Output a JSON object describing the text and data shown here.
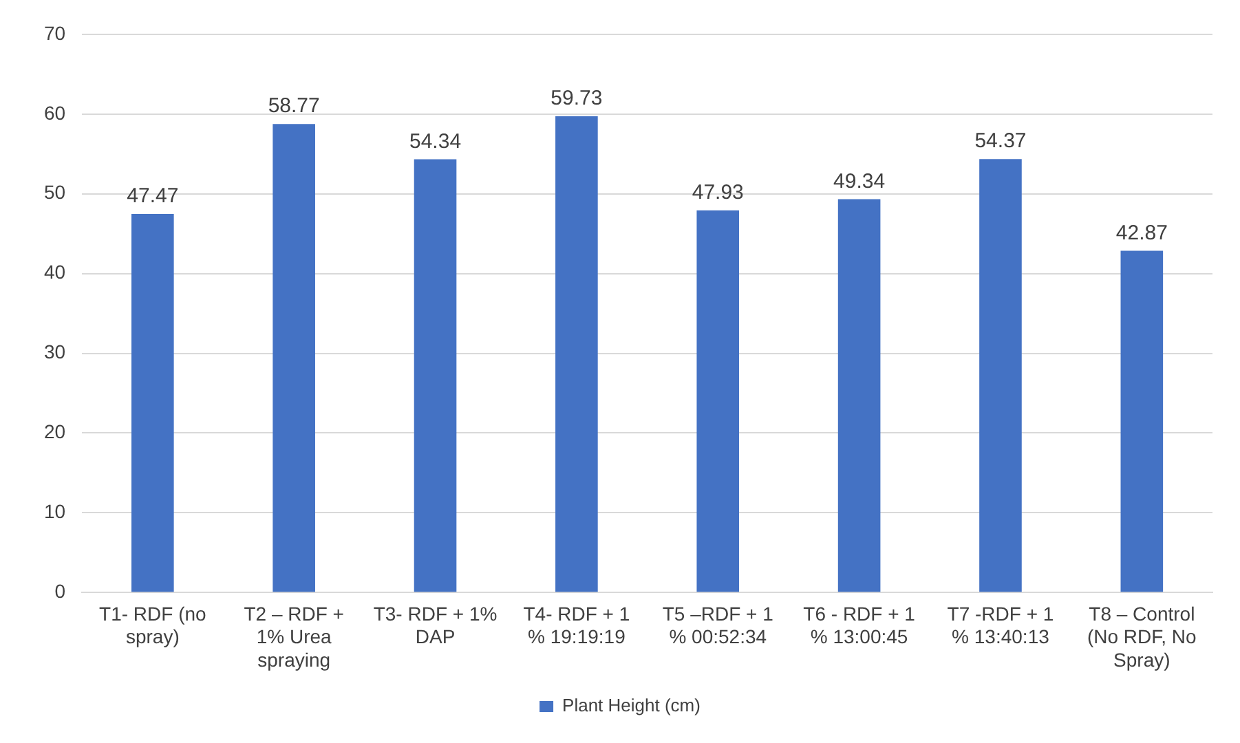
{
  "chart_data": {
    "type": "bar",
    "categories": [
      "T1- RDF (no spray)",
      "T2 – RDF + 1% Urea spraying",
      "T3- RDF + 1% DAP",
      "T4- RDF + 1 % 19:19:19",
      "T5 –RDF + 1 % 00:52:34",
      "T6 - RDF + 1 % 13:00:45",
      "T7 -RDF + 1 % 13:40:13",
      "T8 – Control (No RDF, No Spray)"
    ],
    "series": [
      {
        "name": "Plant Height (cm)",
        "color": "#4472c4",
        "values": [
          47.47,
          58.77,
          54.34,
          59.73,
          47.93,
          49.34,
          54.37,
          42.87
        ]
      }
    ],
    "ylim": [
      0,
      70
    ],
    "yticks": [
      0,
      10,
      20,
      30,
      40,
      50,
      60,
      70
    ],
    "grid": "y",
    "legend": "bottom",
    "data_labels": true
  }
}
